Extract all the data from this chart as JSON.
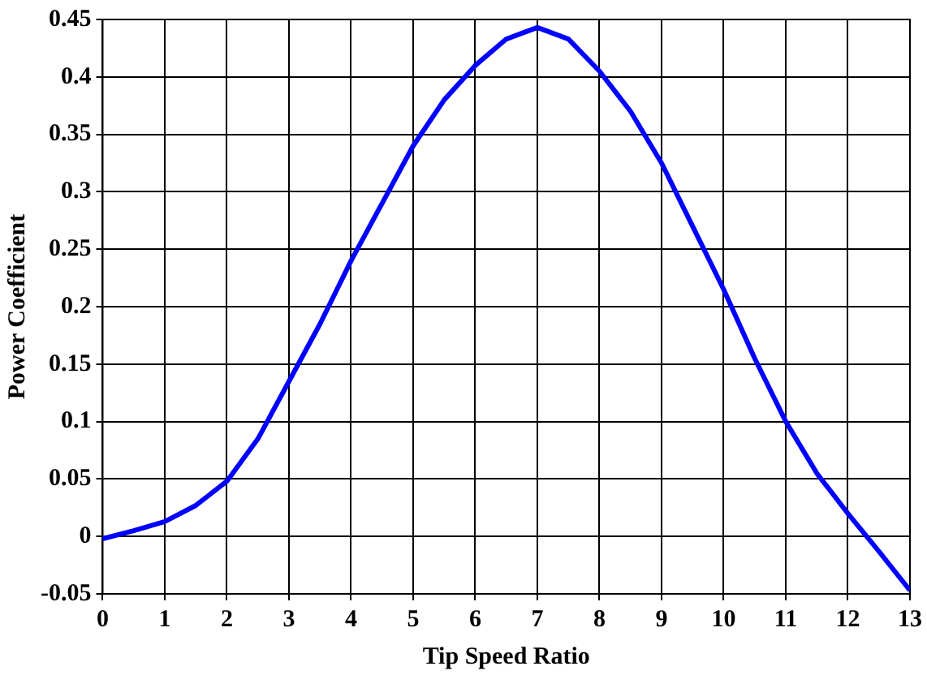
{
  "chart_data": {
    "type": "line",
    "xlabel": "Tip Speed Ratio",
    "ylabel": "Power Coefficient",
    "x": [
      0,
      0.5,
      1,
      1.5,
      2,
      2.5,
      3,
      3.5,
      4,
      4.5,
      5,
      5.5,
      6,
      6.5,
      7,
      7.5,
      8,
      8.5,
      9,
      9.5,
      10,
      10.5,
      11,
      11.5,
      12,
      12.5,
      13
    ],
    "series": [
      {
        "color": "#0000ff",
        "values": [
          -0.002,
          0.005,
          0.013,
          0.027,
          0.048,
          0.085,
          0.135,
          0.185,
          0.24,
          0.29,
          0.34,
          0.38,
          0.41,
          0.433,
          0.443,
          0.433,
          0.405,
          0.37,
          0.325,
          0.27,
          0.215,
          0.155,
          0.1,
          0.055,
          0.02,
          -0.013,
          -0.047
        ]
      }
    ],
    "xlim": [
      0,
      13
    ],
    "xticks": [
      0,
      1,
      2,
      3,
      4,
      5,
      6,
      7,
      8,
      9,
      10,
      11,
      12,
      13
    ],
    "ylim": [
      -0.05,
      0.45
    ],
    "yticks": [
      -0.05,
      0,
      0.05,
      0.1,
      0.15,
      0.2,
      0.25,
      0.3,
      0.35,
      0.4,
      0.45
    ],
    "grid": true,
    "legend": false,
    "marker": "none",
    "line_style": "solid"
  }
}
